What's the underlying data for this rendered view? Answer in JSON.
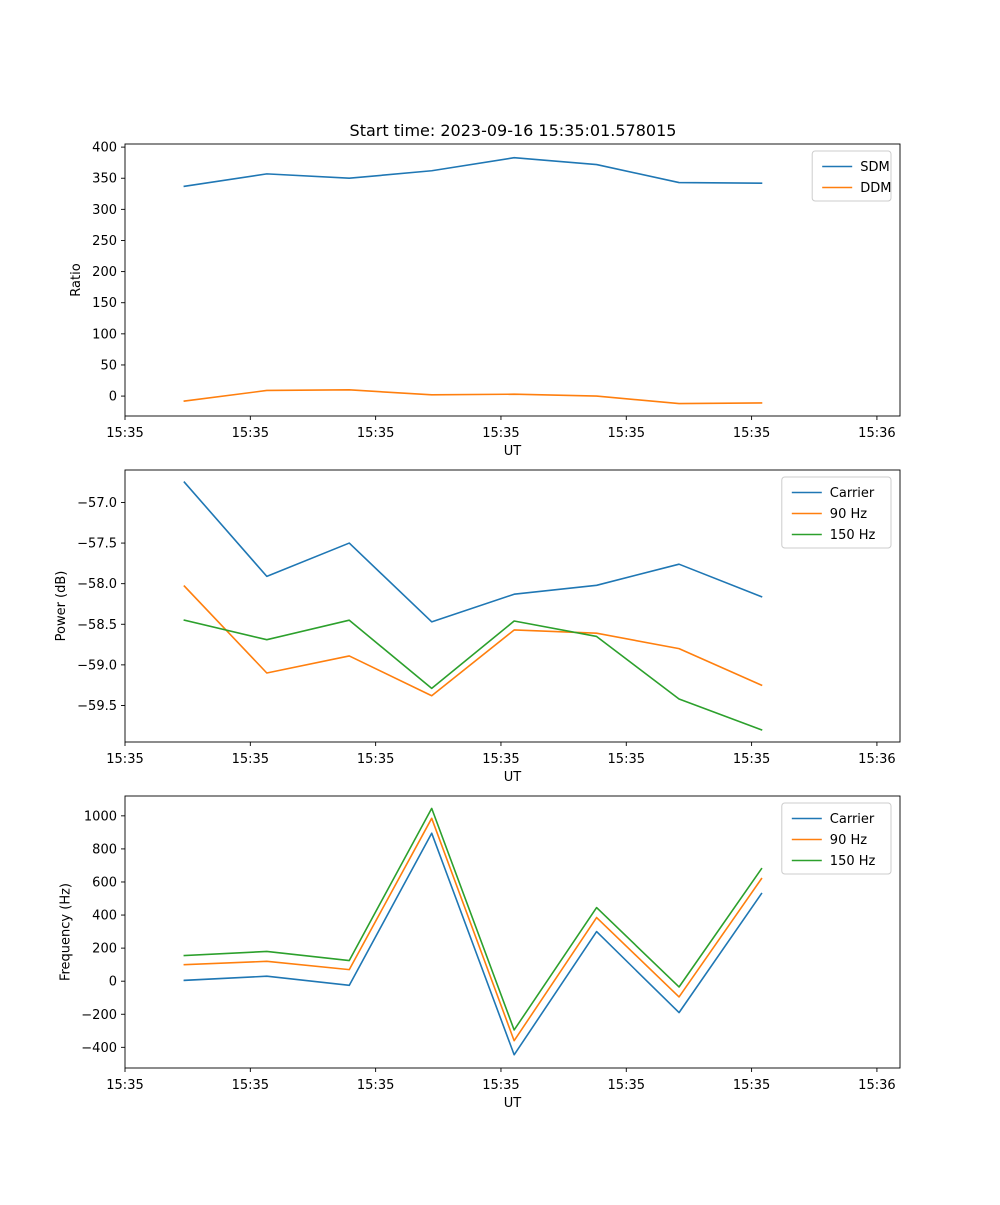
{
  "title": "Start time: 2023-09-16 15:35:01.578015",
  "chart_data": [
    {
      "type": "line",
      "id": "ratio",
      "xlabel": "UT",
      "ylabel": "Ratio",
      "x": [
        0,
        1,
        2,
        3,
        4,
        5,
        6,
        7
      ],
      "xlim": [
        -0.72,
        8.68
      ],
      "xticks": [
        -0.72,
        0.8,
        2.32,
        3.84,
        5.36,
        6.88,
        8.4
      ],
      "xtick_labels": [
        "15:35",
        "15:35",
        "15:35",
        "15:35",
        "15:35",
        "15:35",
        "15:36"
      ],
      "ylim": [
        -32,
        405
      ],
      "yticks": [
        0,
        50,
        100,
        150,
        200,
        250,
        300,
        350,
        400
      ],
      "ytick_labels": [
        "0",
        "50",
        "100",
        "150",
        "200",
        "250",
        "300",
        "350",
        "400"
      ],
      "legend": "top-right",
      "series": [
        {
          "name": "SDM",
          "color": "#1f77b4",
          "values": [
            337,
            357,
            350,
            362,
            383,
            372,
            343,
            342
          ]
        },
        {
          "name": "DDM",
          "color": "#ff7f0e",
          "values": [
            -8,
            9,
            10,
            2,
            3,
            0,
            -12,
            -11
          ]
        }
      ]
    },
    {
      "type": "line",
      "id": "power",
      "xlabel": "UT",
      "ylabel": "Power (dB)",
      "x": [
        0,
        1,
        2,
        3,
        4,
        5,
        6,
        7
      ],
      "xlim": [
        -0.72,
        8.68
      ],
      "xticks": [
        -0.72,
        0.8,
        2.32,
        3.84,
        5.36,
        6.88,
        8.4
      ],
      "xtick_labels": [
        "15:35",
        "15:35",
        "15:35",
        "15:35",
        "15:35",
        "15:35",
        "15:36"
      ],
      "ylim": [
        -59.95,
        -56.6
      ],
      "yticks": [
        -57.0,
        -57.5,
        -58.0,
        -58.5,
        -59.0,
        -59.5
      ],
      "ytick_labels": [
        "−57.0",
        "−57.5",
        "−58.0",
        "−58.5",
        "−59.0",
        "−59.5"
      ],
      "legend": "top-right",
      "series": [
        {
          "name": "Carrier",
          "color": "#1f77b4",
          "values": [
            -56.75,
            -57.91,
            -57.5,
            -58.47,
            -58.13,
            -58.02,
            -57.76,
            -58.16
          ]
        },
        {
          "name": "90 Hz",
          "color": "#ff7f0e",
          "values": [
            -58.03,
            -59.1,
            -58.89,
            -59.38,
            -58.57,
            -58.61,
            -58.8,
            -59.25
          ]
        },
        {
          "name": "150 Hz",
          "color": "#2ca02c",
          "values": [
            -58.45,
            -58.69,
            -58.45,
            -59.29,
            -58.46,
            -58.65,
            -59.42,
            -59.8
          ]
        }
      ]
    },
    {
      "type": "line",
      "id": "frequency",
      "xlabel": "UT",
      "ylabel": "Frequency (Hz)",
      "x": [
        0,
        1,
        2,
        3,
        4,
        5,
        6,
        7
      ],
      "xlim": [
        -0.72,
        8.68
      ],
      "xticks": [
        -0.72,
        0.8,
        2.32,
        3.84,
        5.36,
        6.88,
        8.4
      ],
      "xtick_labels": [
        "15:35",
        "15:35",
        "15:35",
        "15:35",
        "15:35",
        "15:35",
        "15:36"
      ],
      "ylim": [
        -525,
        1120
      ],
      "yticks": [
        1000,
        800,
        600,
        400,
        200,
        0,
        -200,
        -400
      ],
      "ytick_labels": [
        "1000",
        "800",
        "600",
        "400",
        "200",
        "0",
        "−200",
        "−400"
      ],
      "legend": "top-right",
      "series": [
        {
          "name": "Carrier",
          "color": "#1f77b4",
          "values": [
            5,
            30,
            -25,
            895,
            -445,
            300,
            -190,
            530
          ]
        },
        {
          "name": "90 Hz",
          "color": "#ff7f0e",
          "values": [
            100,
            120,
            70,
            985,
            -360,
            385,
            -95,
            620
          ]
        },
        {
          "name": "150 Hz",
          "color": "#2ca02c",
          "values": [
            155,
            180,
            125,
            1045,
            -295,
            445,
            -35,
            680
          ]
        }
      ]
    }
  ]
}
